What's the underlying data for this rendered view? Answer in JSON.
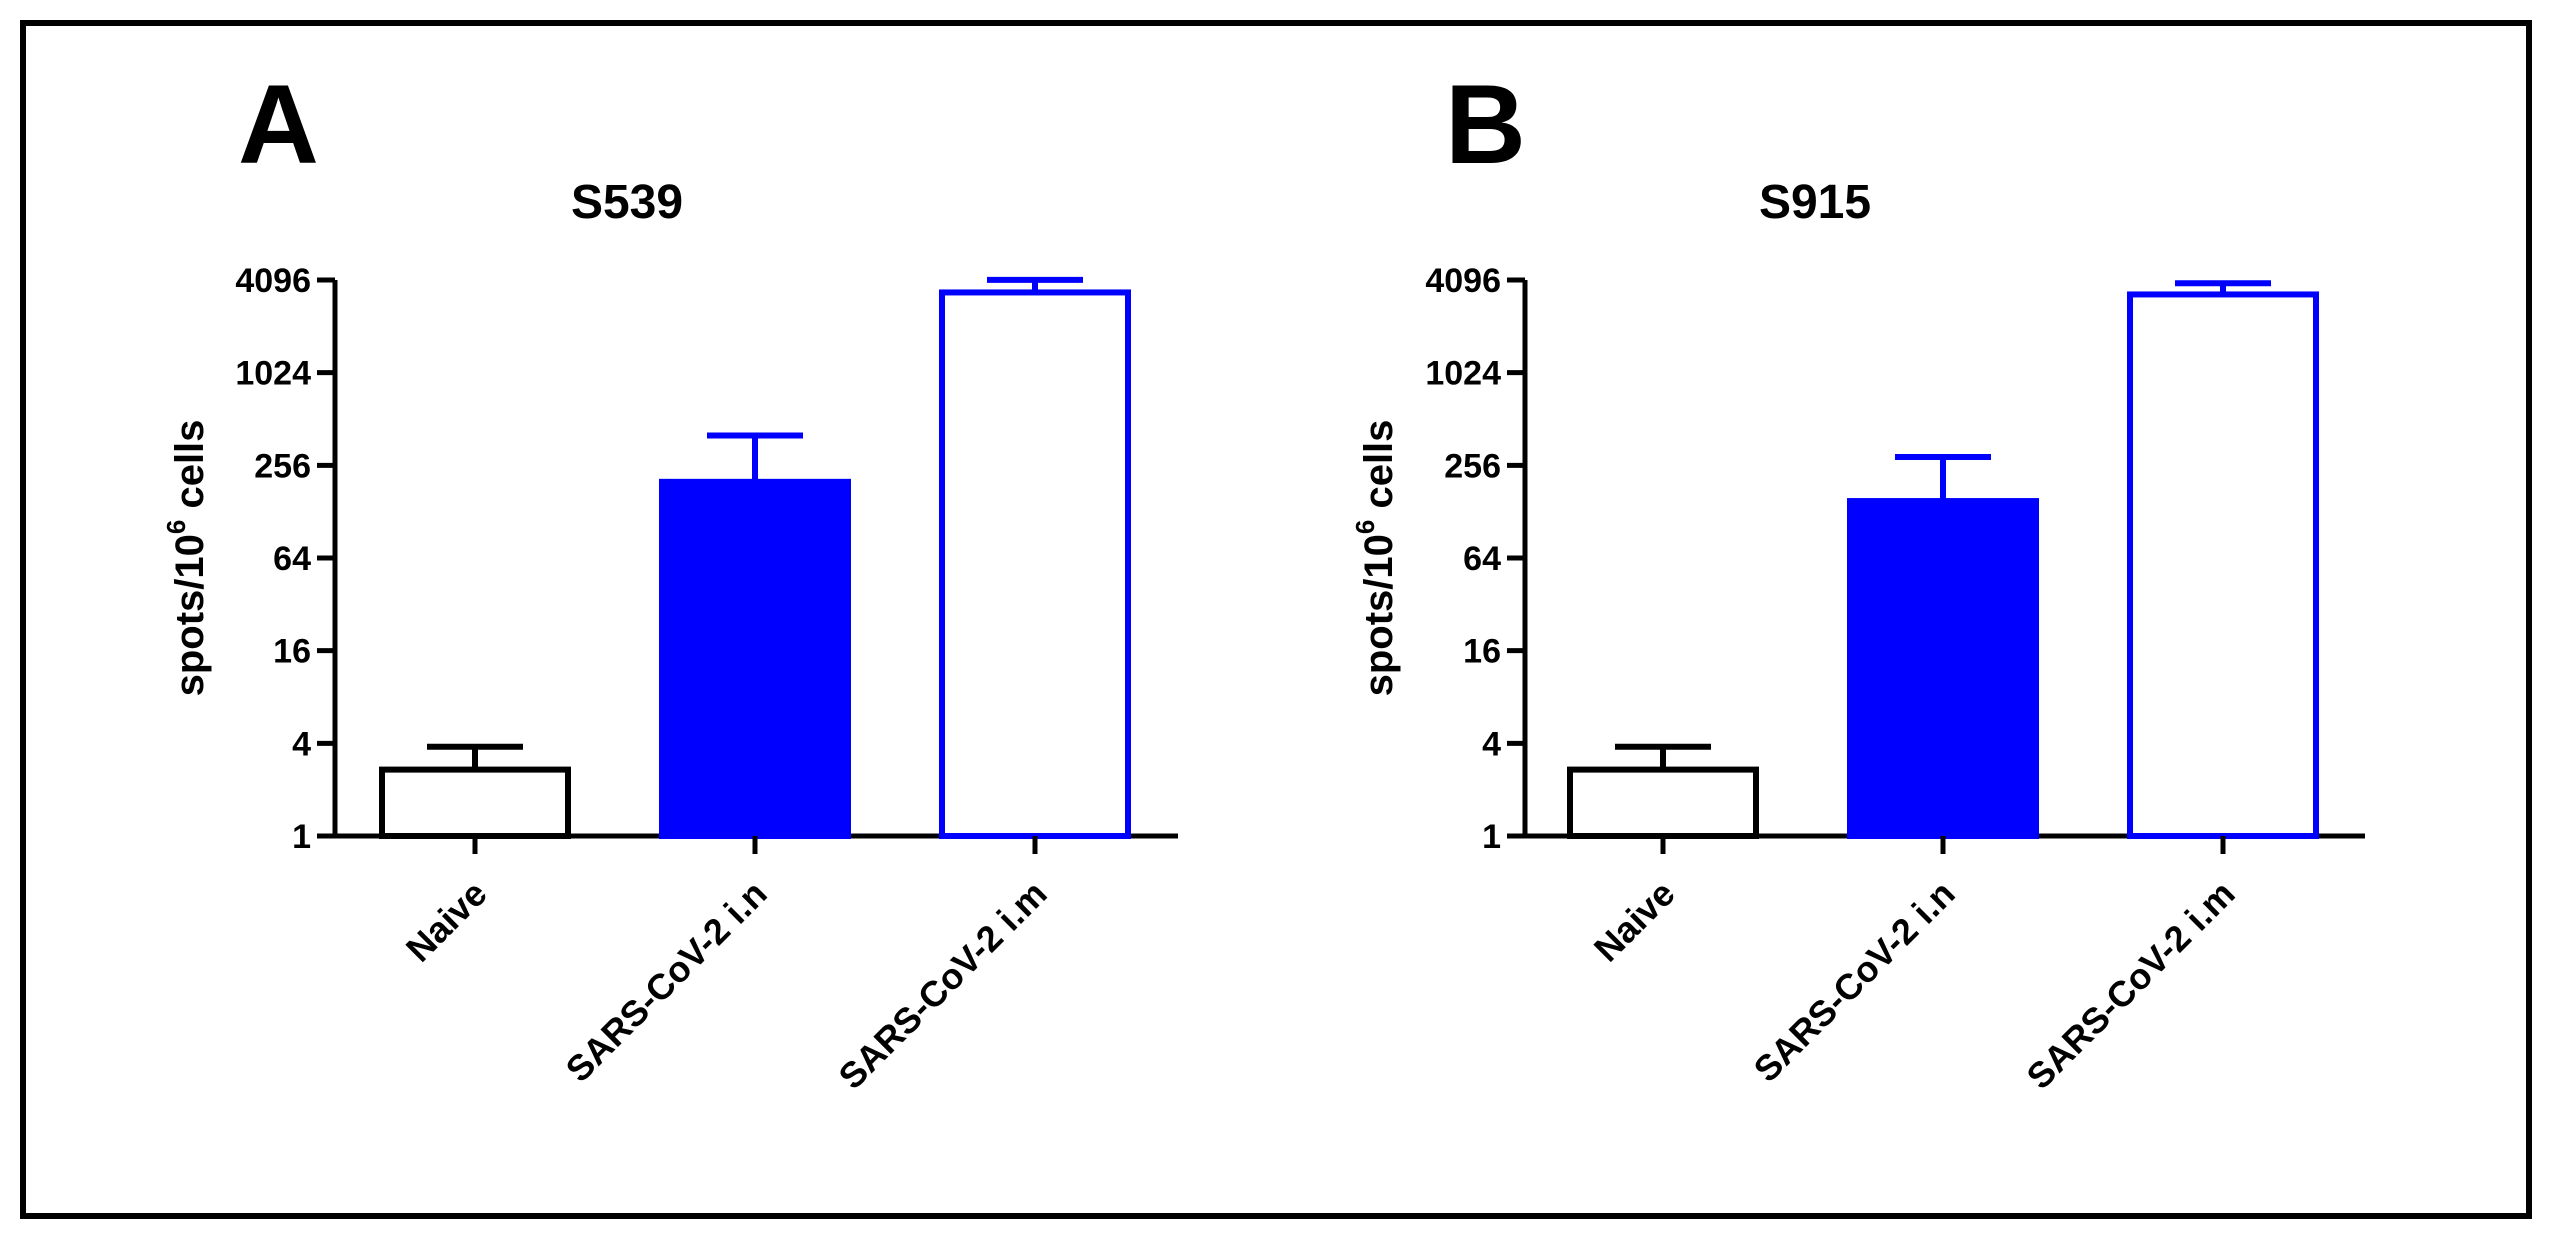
{
  "chart_data": [
    {
      "panel": "A",
      "type": "bar",
      "title": "S539",
      "ylabel_prefix": "spots/10",
      "ylabel_sup": "6",
      "ylabel_suffix": " cells",
      "yscale": "log2",
      "ylim": [
        1,
        4096
      ],
      "yticks": [
        1,
        4,
        16,
        64,
        256,
        1024,
        4096
      ],
      "ytick_labels": [
        "1",
        "4",
        "16",
        "64",
        "256",
        "1024",
        "4096"
      ],
      "categories": [
        "Naive",
        "SARS-CoV-2 i.n",
        "SARS-CoV-2 i.m"
      ],
      "values": [
        2.7,
        200,
        3400
      ],
      "errors_upper": [
        3.8,
        400,
        4100
      ],
      "bar_styles": [
        "outline-black",
        "filled-blue",
        "outline-blue"
      ]
    },
    {
      "panel": "B",
      "type": "bar",
      "title": "S915",
      "ylabel_prefix": "spots/10",
      "ylabel_sup": "6",
      "ylabel_suffix": " cells",
      "yscale": "log2",
      "ylim": [
        1,
        4096
      ],
      "yticks": [
        1,
        4,
        16,
        64,
        256,
        1024,
        4096
      ],
      "ytick_labels": [
        "1",
        "4",
        "16",
        "64",
        "256",
        "1024",
        "4096"
      ],
      "categories": [
        "Naive",
        "SARS-CoV-2 i.n",
        "SARS-CoV-2 i.m"
      ],
      "values": [
        2.7,
        150,
        3300
      ],
      "errors_upper": [
        3.8,
        290,
        3900
      ],
      "bar_styles": [
        "outline-black",
        "filled-blue",
        "outline-blue"
      ]
    }
  ],
  "colors": {
    "blue": "#0000ff",
    "black": "#000000",
    "white": "#ffffff"
  }
}
